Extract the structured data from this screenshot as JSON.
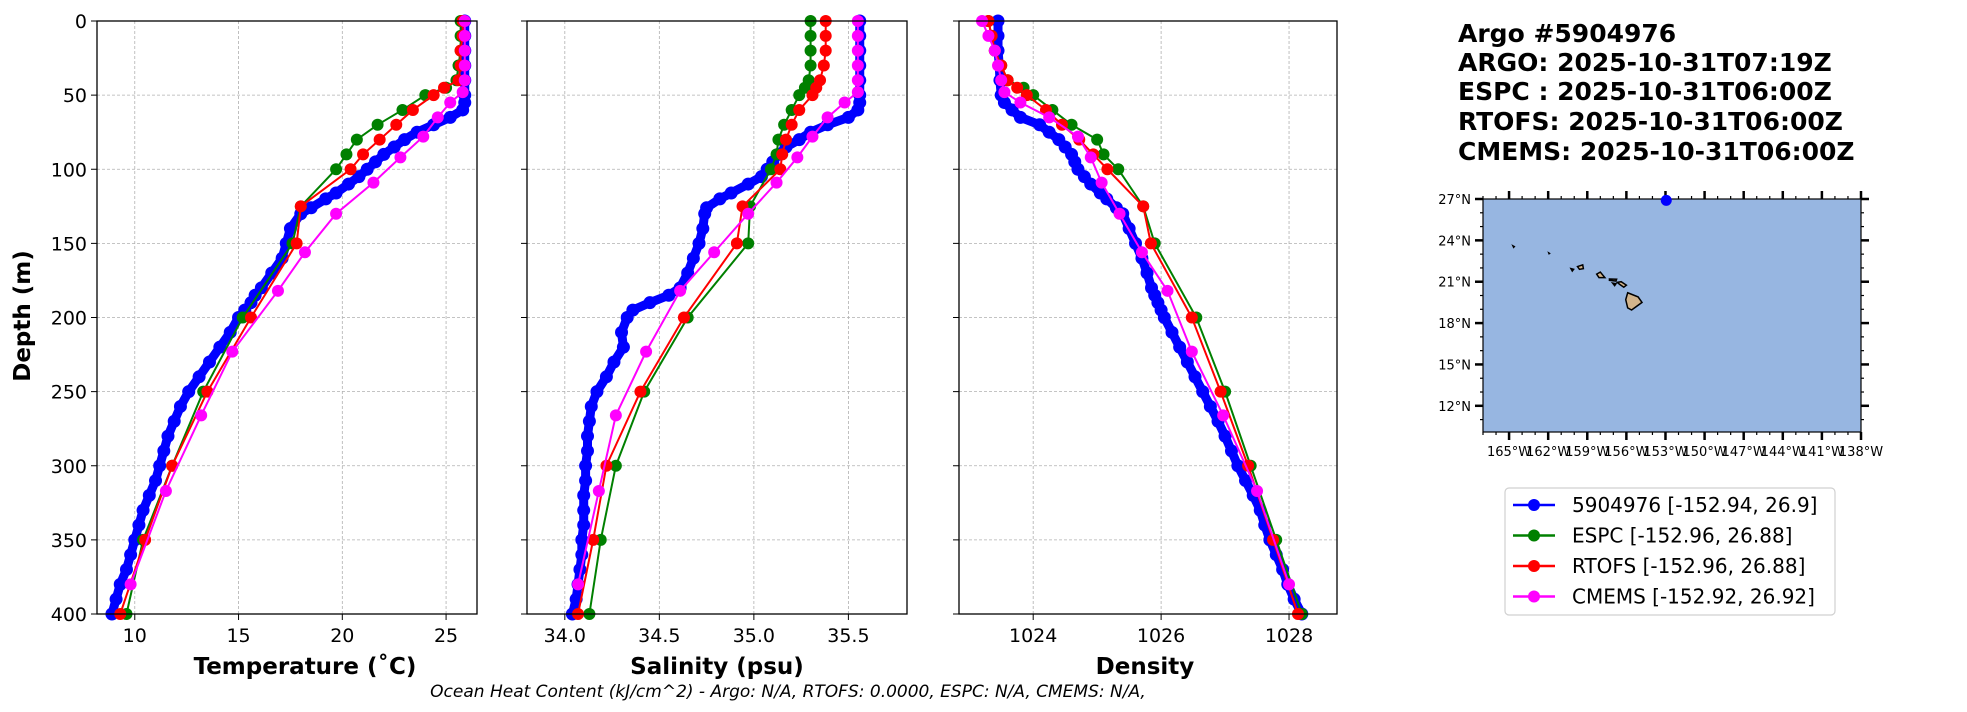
{
  "info_block": {
    "lines": [
      "Argo #5904976",
      "ARGO: 2025-10-31T07:19Z",
      "ESPC : 2025-10-31T06:00Z",
      "RTOFS: 2025-10-31T06:00Z",
      "CMEMS: 2025-10-31T06:00Z"
    ]
  },
  "footer": "Ocean Heat Content (kJ/cm^2) - Argo: N/A,  RTOFS: 0.0000,  ESPC: N/A,  CMEMS: N/A,",
  "legend": {
    "placement": "below-map",
    "entries": [
      {
        "label": "5904976 [-152.94, 26.9]",
        "color": "#0000ff"
      },
      {
        "label": "ESPC [-152.96, 26.88]",
        "color": "#008000"
      },
      {
        "label": "RTOFS [-152.96, 26.88]",
        "color": "#ff0000"
      },
      {
        "label": "CMEMS [-152.92, 26.92]",
        "color": "#ff00ff"
      }
    ]
  },
  "chart_data": {
    "type": "line",
    "ylabel": "Depth (m)",
    "ylim": [
      400,
      0
    ],
    "yticks": [
      0,
      50,
      100,
      150,
      200,
      250,
      300,
      350,
      400
    ],
    "grid": true,
    "panels": [
      {
        "key": "temperature",
        "xlabel": "Temperature (˚C)",
        "xlim": [
          8.18,
          26.49
        ],
        "xticks": [
          10,
          15,
          20,
          25
        ],
        "xticklabels": [
          "10",
          "15",
          "20",
          "25"
        ]
      },
      {
        "key": "salinity",
        "xlabel": "Salinity (psu)",
        "xlim": [
          33.8,
          35.81
        ],
        "xticks": [
          34.0,
          34.5,
          35.0,
          35.5
        ],
        "xticklabels": [
          "34.0",
          "34.5",
          "35.0",
          "35.5"
        ]
      },
      {
        "key": "density",
        "xlabel": "Density",
        "xlim": [
          1022.84,
          1028.75
        ],
        "xticks": [
          1024,
          1026,
          1028
        ],
        "xticklabels": [
          "1024",
          "1026",
          "1028"
        ]
      }
    ],
    "series": [
      {
        "name": "5904976",
        "color": "#0000ff",
        "depth": [
          0,
          10,
          20,
          30,
          40,
          50,
          55,
          60,
          65,
          70,
          75,
          80,
          85,
          90,
          95,
          100,
          105,
          110,
          116,
          120,
          126,
          130,
          140,
          150,
          160,
          170,
          180,
          185,
          190,
          195,
          200,
          210,
          220,
          230,
          240,
          250,
          260,
          270,
          280,
          290,
          300,
          310,
          320,
          330,
          340,
          350,
          360,
          370,
          380,
          390,
          400
        ],
        "temperature": [
          25.9,
          25.9,
          25.9,
          25.9,
          25.9,
          25.9,
          25.9,
          25.8,
          25.2,
          24.4,
          23.6,
          23.0,
          22.5,
          22.0,
          21.6,
          21.2,
          20.8,
          20.3,
          19.7,
          19.2,
          18.5,
          18.0,
          17.5,
          17.3,
          17.1,
          16.6,
          16.1,
          15.8,
          15.6,
          15.3,
          15.0,
          14.6,
          14.1,
          13.6,
          13.1,
          12.6,
          12.2,
          11.9,
          11.6,
          11.4,
          11.2,
          11.0,
          10.7,
          10.4,
          10.2,
          10.0,
          9.8,
          9.6,
          9.3,
          9.1,
          8.9
        ],
        "salinity": [
          35.56,
          35.56,
          35.56,
          35.56,
          35.56,
          35.56,
          35.56,
          35.55,
          35.5,
          35.39,
          35.3,
          35.24,
          35.17,
          35.13,
          35.1,
          35.07,
          35.04,
          34.97,
          34.88,
          34.82,
          34.75,
          34.74,
          34.73,
          34.71,
          34.68,
          34.65,
          34.61,
          34.55,
          34.45,
          34.36,
          34.33,
          34.3,
          34.31,
          34.26,
          34.22,
          34.17,
          34.14,
          34.13,
          34.12,
          34.12,
          34.11,
          34.11,
          34.1,
          34.1,
          34.1,
          34.09,
          34.09,
          34.08,
          34.07,
          34.06,
          34.04
        ],
        "density": [
          1023.45,
          1023.45,
          1023.45,
          1023.47,
          1023.48,
          1023.5,
          1023.55,
          1023.67,
          1023.8,
          1024.1,
          1024.25,
          1024.4,
          1024.5,
          1024.6,
          1024.65,
          1024.7,
          1024.8,
          1024.9,
          1025.05,
          1025.15,
          1025.3,
          1025.4,
          1025.5,
          1025.6,
          1025.7,
          1025.78,
          1025.85,
          1025.9,
          1025.95,
          1026.0,
          1026.05,
          1026.17,
          1026.29,
          1026.41,
          1026.53,
          1026.65,
          1026.77,
          1026.89,
          1027.0,
          1027.1,
          1027.2,
          1027.32,
          1027.44,
          1027.55,
          1027.62,
          1027.7,
          1027.8,
          1027.9,
          1027.98,
          1028.08,
          1028.2
        ]
      },
      {
        "name": "ESPC",
        "color": "#008000",
        "depth": [
          0,
          10,
          20,
          30,
          40,
          45,
          50,
          60,
          70,
          80,
          90,
          100,
          125,
          150,
          200,
          250,
          300,
          350,
          400
        ],
        "temperature": [
          25.7,
          25.7,
          25.7,
          25.6,
          25.5,
          25.0,
          24.0,
          22.9,
          21.7,
          20.7,
          20.2,
          19.7,
          18.0,
          17.6,
          15.2,
          13.3,
          11.8,
          10.4,
          9.6
        ],
        "salinity": [
          35.3,
          35.3,
          35.3,
          35.3,
          35.29,
          35.27,
          35.24,
          35.2,
          35.16,
          35.13,
          35.12,
          35.09,
          34.98,
          34.97,
          34.65,
          34.42,
          34.27,
          34.19,
          34.13
        ],
        "density": [
          1023.3,
          1023.35,
          1023.4,
          1023.5,
          1023.6,
          1023.85,
          1024.0,
          1024.3,
          1024.6,
          1025.0,
          1025.1,
          1025.33,
          1025.72,
          1025.9,
          1026.55,
          1027.0,
          1027.4,
          1027.8,
          1028.2
        ]
      },
      {
        "name": "RTOFS",
        "color": "#ff0000",
        "depth": [
          0,
          10,
          20,
          30,
          40,
          45,
          50,
          60,
          70,
          80,
          90,
          100,
          125,
          150,
          200,
          250,
          300,
          350,
          400
        ],
        "temperature": [
          25.8,
          25.8,
          25.7,
          25.7,
          25.6,
          24.9,
          24.4,
          23.4,
          22.6,
          21.8,
          21.0,
          20.4,
          18.0,
          17.8,
          15.6,
          13.5,
          11.8,
          10.5,
          9.3
        ],
        "salinity": [
          35.38,
          35.38,
          35.38,
          35.37,
          35.35,
          35.33,
          35.31,
          35.24,
          35.2,
          35.17,
          35.15,
          35.14,
          34.94,
          34.91,
          34.63,
          34.4,
          34.22,
          34.15,
          34.07
        ],
        "density": [
          1023.3,
          1023.35,
          1023.4,
          1023.5,
          1023.6,
          1023.75,
          1023.9,
          1024.2,
          1024.45,
          1024.72,
          1024.94,
          1025.16,
          1025.72,
          1025.84,
          1026.48,
          1026.93,
          1027.36,
          1027.75,
          1028.14
        ]
      },
      {
        "name": "CMEMS",
        "color": "#ff00ff",
        "depth": [
          0,
          10,
          20,
          30,
          40,
          48,
          55,
          65,
          78,
          92,
          109,
          130,
          156,
          182,
          223,
          266,
          317,
          380
        ],
        "temperature": [
          25.9,
          25.9,
          25.9,
          25.9,
          25.9,
          25.8,
          25.2,
          24.6,
          23.9,
          22.8,
          21.5,
          19.7,
          18.2,
          16.9,
          14.7,
          13.2,
          11.5,
          9.8
        ],
        "salinity": [
          35.55,
          35.55,
          35.55,
          35.55,
          35.55,
          35.55,
          35.48,
          35.39,
          35.31,
          35.23,
          35.12,
          34.97,
          34.79,
          34.61,
          34.43,
          34.27,
          34.18,
          34.07
        ],
        "density": [
          1023.2,
          1023.3,
          1023.4,
          1023.45,
          1023.5,
          1023.55,
          1023.8,
          1024.25,
          1024.7,
          1024.9,
          1025.07,
          1025.35,
          1025.7,
          1026.1,
          1026.48,
          1026.97,
          1027.5,
          1028.0
        ]
      }
    ],
    "map": {
      "lonlim": [
        -167,
        -138
      ],
      "latlim": [
        10.1,
        27
      ],
      "lon_ticks": [
        -165,
        -162,
        -159,
        -156,
        -153,
        -150,
        -147,
        -144,
        -141,
        -138
      ],
      "lon_ticklabels": [
        "165°W",
        "162°W",
        "159°W",
        "156°W",
        "153°W",
        "150°W",
        "147°W",
        "144°W",
        "141°W",
        "138°W"
      ],
      "lat_ticks": [
        12,
        15,
        18,
        21,
        24,
        27
      ],
      "lat_ticklabels": [
        "12°N",
        "15°N",
        "18°N",
        "21°N",
        "24°N",
        "27°N"
      ],
      "ocean_color": "#97b6e1",
      "land_color": "#d2b48c",
      "float_position": {
        "lon": -152.94,
        "lat": 26.9,
        "color": "#0000ff"
      },
      "islands": [
        {
          "name": "Hawaii",
          "coords": [
            [
              -155.9,
              20.2
            ],
            [
              -155.1,
              19.9
            ],
            [
              -154.8,
              19.5
            ],
            [
              -155.6,
              18.95
            ],
            [
              -155.9,
              19.1
            ],
            [
              -156.05,
              19.7
            ],
            [
              -155.9,
              20.2
            ]
          ]
        },
        {
          "name": "Maui",
          "coords": [
            [
              -156.7,
              20.95
            ],
            [
              -156.4,
              21.0
            ],
            [
              -156.0,
              20.75
            ],
            [
              -156.2,
              20.6
            ],
            [
              -156.5,
              20.8
            ],
            [
              -156.7,
              20.95
            ]
          ]
        },
        {
          "name": "Molokai",
          "coords": [
            [
              -157.3,
              21.2
            ],
            [
              -156.75,
              21.18
            ],
            [
              -156.8,
              21.05
            ],
            [
              -157.3,
              21.1
            ],
            [
              -157.3,
              21.2
            ]
          ]
        },
        {
          "name": "Lanai",
          "coords": [
            [
              -157.05,
              20.9
            ],
            [
              -156.8,
              20.85
            ],
            [
              -156.9,
              20.72
            ],
            [
              -157.05,
              20.9
            ]
          ]
        },
        {
          "name": "Oahu",
          "coords": [
            [
              -158.28,
              21.55
            ],
            [
              -158.0,
              21.7
            ],
            [
              -157.65,
              21.3
            ],
            [
              -158.1,
              21.3
            ],
            [
              -158.28,
              21.55
            ]
          ]
        },
        {
          "name": "Kauai",
          "coords": [
            [
              -159.75,
              22.1
            ],
            [
              -159.35,
              22.22
            ],
            [
              -159.3,
              21.95
            ],
            [
              -159.6,
              21.9
            ],
            [
              -159.75,
              22.1
            ]
          ]
        },
        {
          "name": "Niihau",
          "coords": [
            [
              -160.25,
              21.95
            ],
            [
              -160.05,
              21.9
            ],
            [
              -160.15,
              21.78
            ],
            [
              -160.25,
              21.95
            ]
          ]
        },
        {
          "name": "Necker",
          "coords": [
            [
              -164.7,
              23.6
            ],
            [
              -164.6,
              23.55
            ],
            [
              -164.65,
              23.5
            ],
            [
              -164.7,
              23.6
            ]
          ]
        },
        {
          "name": "Nihoa",
          "coords": [
            [
              -161.95,
              23.08
            ],
            [
              -161.9,
              23.05
            ],
            [
              -161.93,
              23.03
            ],
            [
              -161.95,
              23.08
            ]
          ]
        }
      ]
    }
  }
}
